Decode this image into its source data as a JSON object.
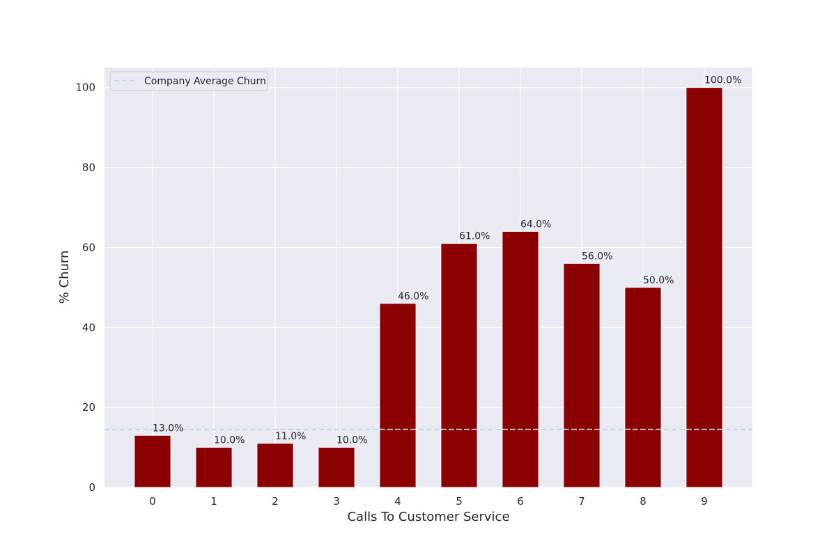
{
  "chart_data": {
    "type": "bar",
    "title": "",
    "xlabel": "Calls To Customer Service",
    "ylabel": "% Churn",
    "categories": [
      "0",
      "1",
      "2",
      "3",
      "4",
      "5",
      "6",
      "7",
      "8",
      "9"
    ],
    "values": [
      13,
      10,
      11,
      10,
      46,
      61,
      64,
      56,
      50,
      100
    ],
    "data_labels": [
      "13.0%",
      "10.0%",
      "11.0%",
      "10.0%",
      "46.0%",
      "61.0%",
      "64.0%",
      "56.0%",
      "50.0%",
      "100.0%"
    ],
    "ylim": [
      0,
      105
    ],
    "yticks": [
      0,
      20,
      40,
      60,
      80,
      100
    ],
    "grid": true,
    "bar_color": "#8b0000",
    "reference_line": {
      "label": "Company Average Churn",
      "value": 14.5,
      "color": "#add8e6",
      "style": "dashed"
    },
    "legend": {
      "placement": "top-left",
      "entries": [
        "Company Average Churn"
      ]
    },
    "background_color": "#eaeaf2"
  }
}
